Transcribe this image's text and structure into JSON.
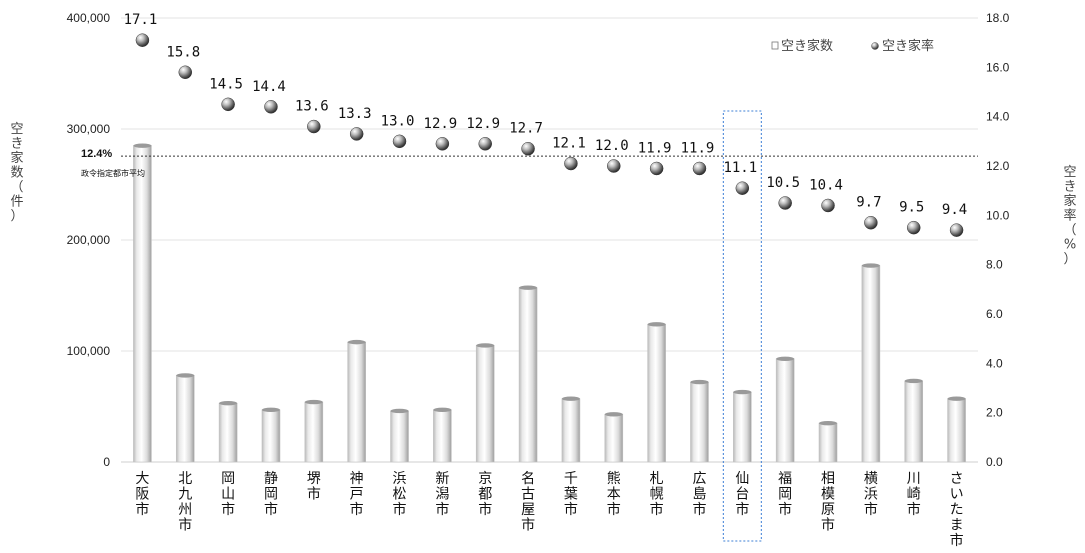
{
  "chart_data": {
    "type": "bar",
    "categories": [
      "大阪市",
      "北九州市",
      "岡山市",
      "静岡市",
      "堺市",
      "神戸市",
      "浜松市",
      "新潟市",
      "京都市",
      "名古屋市",
      "千葉市",
      "熊本市",
      "札幌市",
      "広島市",
      "仙台市",
      "福岡市",
      "相模原市",
      "横浜市",
      "川崎市",
      "さいたま市"
    ],
    "series": [
      {
        "name": "空き家数",
        "type": "bar",
        "axis": "left",
        "values": [
          285000,
          78000,
          53000,
          47000,
          54000,
          108000,
          46000,
          47000,
          105000,
          157000,
          57000,
          43000,
          124000,
          72000,
          63000,
          93000,
          35000,
          177000,
          73000,
          57000
        ]
      },
      {
        "name": "空き家率",
        "type": "scatter",
        "axis": "right",
        "values": [
          17.1,
          15.8,
          14.5,
          14.4,
          13.6,
          13.3,
          13.0,
          12.9,
          12.9,
          12.7,
          12.1,
          12.0,
          11.9,
          11.9,
          11.1,
          10.5,
          10.4,
          9.7,
          9.5,
          9.4
        ],
        "labels": [
          "17.1",
          "15.8",
          "14.5",
          "14.4",
          "13.6",
          "13.3",
          "13.0",
          "12.9",
          "12.9",
          "12.7",
          "12.1",
          "12.0",
          "11.9",
          "11.9",
          "11.1",
          "10.5",
          "10.4",
          "9.7",
          "9.5",
          "9.4"
        ]
      }
    ],
    "ylabel_left": "空き家数（件）",
    "ylabel_right": "空き家率（%）",
    "ylim_left": [
      0,
      400000
    ],
    "ylim_right": [
      0,
      18
    ],
    "yticks_left": [
      "0",
      "100,000",
      "200,000",
      "300,000",
      "400,000"
    ],
    "yticks_right": [
      "0.0",
      "2.0",
      "4.0",
      "6.0",
      "8.0",
      "10.0",
      "12.0",
      "14.0",
      "16.0",
      "18.0"
    ],
    "reference_line": {
      "value": 12.4,
      "axis": "right",
      "label": "12.4%",
      "sublabel": "政令指定都市平均"
    },
    "highlight_category": "仙台市",
    "legend": {
      "position": "top-right",
      "bar_label": "空き家数",
      "point_label": "空き家率"
    },
    "grid": true
  }
}
